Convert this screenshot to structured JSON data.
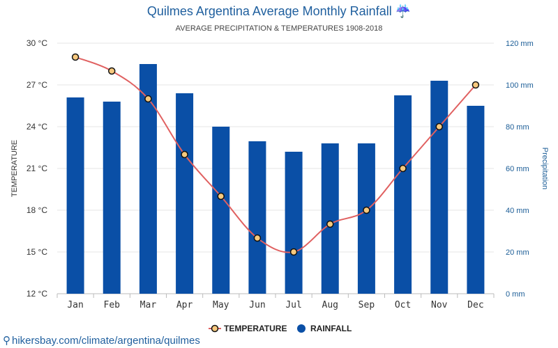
{
  "title": "Quilmes Argentina Average Monthly Rainfall",
  "title_icon": "umbrella-rain-icon",
  "title_icon_glyph": "☔",
  "subtitle": "AVERAGE PRECIPITATION & TEMPERATURES 1908-2018",
  "footer": {
    "icon": "location-pin-icon",
    "glyph": "⚲",
    "text": "hikersbay.com/climate/argentina/quilmes"
  },
  "legend": {
    "temperature": "TEMPERATURE",
    "rainfall": "RAINFALL"
  },
  "chart_data": {
    "type": "bar",
    "categories": [
      "Jan",
      "Feb",
      "Mar",
      "Apr",
      "May",
      "Jun",
      "Jul",
      "Aug",
      "Sep",
      "Oct",
      "Nov",
      "Dec"
    ],
    "series": [
      {
        "name": "RAINFALL",
        "type": "bar",
        "axis": "right",
        "unit": "mm",
        "color": "#0a4fa6",
        "values": [
          94,
          92,
          110,
          96,
          80,
          73,
          68,
          72,
          72,
          95,
          102,
          90
        ]
      },
      {
        "name": "TEMPERATURE",
        "type": "line",
        "axis": "left",
        "unit": "°C",
        "color": "#e06060",
        "marker_fill": "#f7c97e",
        "values": [
          29,
          28,
          26,
          22,
          19,
          16,
          15,
          17,
          18,
          21,
          24,
          27
        ]
      }
    ],
    "left_axis": {
      "label": "TEMPERATURE",
      "min": 12,
      "max": 30,
      "ticks": [
        "12 °C",
        "15 °C",
        "18 °C",
        "21 °C",
        "24 °C",
        "27 °C",
        "30 °C"
      ]
    },
    "right_axis": {
      "label": "Precipitation",
      "min": 0,
      "max": 120,
      "ticks": [
        "0 mm",
        "20 mm",
        "40 mm",
        "60 mm",
        "80 mm",
        "100 mm",
        "120 mm"
      ]
    },
    "grid": true,
    "legend_position": "bottom"
  }
}
